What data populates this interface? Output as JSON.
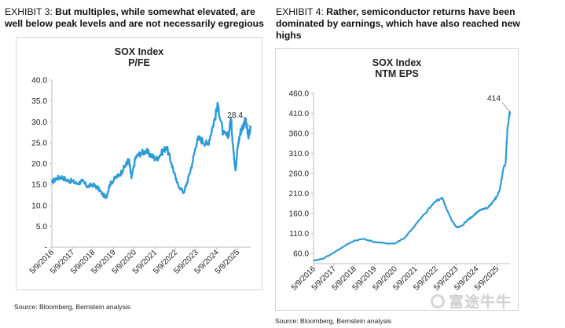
{
  "exhibits": [
    {
      "number": "EXHIBIT 3:",
      "caption": "But multiples, while somewhat elevated, are well below peak levels and are not necessarily egregious",
      "source": "Source: Bloomberg, Bernstein analysis"
    },
    {
      "number": "EXHIBIT 4:",
      "caption": "Rather, semiconductor returns have been dominated by earnings, which have also reached new highs",
      "source": "Source: Bloomberg, Bernstein analysis"
    }
  ],
  "watermark": "富途牛牛",
  "colors": {
    "line": "#2e9bd6",
    "axis": "#bdbdbd",
    "panel_border": "#d4d4d4"
  },
  "chart_data": [
    {
      "type": "line",
      "title": "SOX Index",
      "subtitle": "P/FE",
      "ylim": [
        0,
        40
      ],
      "yticks": [
        "-",
        "5.0",
        "10.0",
        "15.0",
        "20.0",
        "25.0",
        "30.0",
        "35.0",
        "40.0"
      ],
      "ytick_values": [
        0,
        5,
        10,
        15,
        20,
        25,
        30,
        35,
        40
      ],
      "xlim": [
        "2016-05-09",
        "2025-12-31"
      ],
      "xticks": [
        "5/9/2016",
        "5/9/2017",
        "5/9/2018",
        "5/9/2019",
        "5/9/2020",
        "5/9/2021",
        "5/9/2022",
        "5/9/2023",
        "5/9/2024",
        "5/9/2025"
      ],
      "grid": false,
      "legend": "none",
      "end_label": "28.4",
      "series": [
        {
          "x": [
            "2016-05-09",
            "2016-08-01",
            "2016-11-01",
            "2017-02-01",
            "2017-05-01",
            "2017-08-01",
            "2017-11-01",
            "2018-02-01",
            "2018-05-01",
            "2018-08-01",
            "2018-11-01",
            "2019-01-01",
            "2019-03-01",
            "2019-06-01",
            "2019-09-01",
            "2019-12-01",
            "2020-02-01",
            "2020-03-20",
            "2020-06-01",
            "2020-09-01",
            "2020-12-01",
            "2021-03-01",
            "2021-06-01",
            "2021-09-01",
            "2021-12-01",
            "2022-03-01",
            "2022-06-01",
            "2022-09-30",
            "2022-12-01",
            "2023-03-01",
            "2023-06-01",
            "2023-09-01",
            "2023-12-01",
            "2024-03-01",
            "2024-06-01",
            "2024-09-01",
            "2024-12-01",
            "2025-01-15",
            "2025-03-01",
            "2025-04-08",
            "2025-05-15",
            "2025-07-01",
            "2025-08-15",
            "2025-10-01",
            "2025-11-15",
            "2025-12-31"
          ],
          "values": [
            15.5,
            16.5,
            16.8,
            16.0,
            15.8,
            15.2,
            15.8,
            14.5,
            15.0,
            14.2,
            12.5,
            12.0,
            15.0,
            16.5,
            17.5,
            19.5,
            21.0,
            16.5,
            21.5,
            22.5,
            23.0,
            22.0,
            21.0,
            22.5,
            24.0,
            20.0,
            15.5,
            13.0,
            15.5,
            20.0,
            26.0,
            25.5,
            24.5,
            29.0,
            34.0,
            27.0,
            26.5,
            31.0,
            23.0,
            18.5,
            24.0,
            27.5,
            29.0,
            30.5,
            26.5,
            28.4
          ]
        }
      ]
    },
    {
      "type": "line",
      "title": "SOX Index",
      "subtitle": "NTM EPS",
      "ylim": [
        35,
        460
      ],
      "yticks": [
        "60.0",
        "110.0",
        "160.0",
        "210.0",
        "260.0",
        "310.0",
        "360.0",
        "410.0",
        "460.0"
      ],
      "ytick_values": [
        60,
        110,
        160,
        210,
        260,
        310,
        360,
        410,
        460
      ],
      "xlim": [
        "2016-05-09",
        "2025-12-31"
      ],
      "xticks": [
        "5/9/2016",
        "5/9/2017",
        "5/9/2018",
        "5/9/2019",
        "5/9/2020",
        "5/9/2021",
        "5/9/2022",
        "5/9/2023",
        "5/9/2024",
        "5/9/2025"
      ],
      "grid": false,
      "legend": "none",
      "end_label": "414",
      "series": [
        {
          "x": [
            "2016-05-09",
            "2016-11-01",
            "2017-05-01",
            "2017-11-01",
            "2018-05-01",
            "2018-11-01",
            "2019-05-01",
            "2019-11-01",
            "2020-05-01",
            "2020-11-01",
            "2021-05-01",
            "2021-11-01",
            "2022-05-01",
            "2022-09-01",
            "2022-12-01",
            "2023-03-01",
            "2023-06-01",
            "2023-09-01",
            "2023-12-01",
            "2024-03-01",
            "2024-06-01",
            "2024-09-01",
            "2024-12-01",
            "2025-03-01",
            "2025-05-01",
            "2025-07-01",
            "2025-09-01",
            "2025-10-15",
            "2025-11-15",
            "2025-12-15",
            "2025-12-31"
          ],
          "values": [
            42,
            48,
            62,
            78,
            92,
            97,
            89,
            86,
            85,
            100,
            130,
            160,
            190,
            200,
            168,
            140,
            125,
            130,
            145,
            153,
            165,
            170,
            175,
            190,
            200,
            220,
            270,
            290,
            370,
            400,
            414
          ]
        }
      ]
    }
  ]
}
